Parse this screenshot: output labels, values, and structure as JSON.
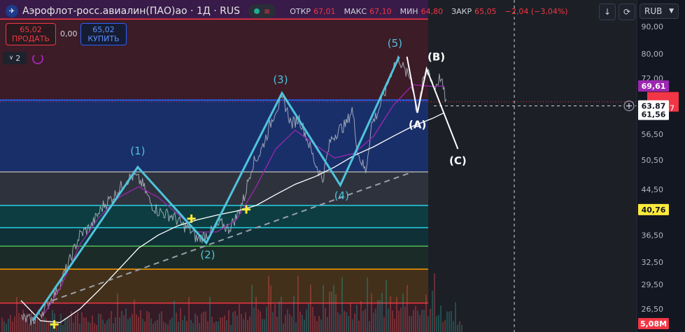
{
  "header": {
    "logo_icon": "aeroflot-logo-icon",
    "title": "Аэрофлот-росс.авиалин(ПАО)ао · 1Д · RUS",
    "status_icon": "market-open-icon",
    "wave_icon": "wave-icon",
    "open_label": "ОТКР",
    "open_value": "67,01",
    "high_label": "МАКС",
    "high_value": "67,10",
    "low_label": "МИН",
    "low_value": "64,80",
    "close_label": "ЗАКР",
    "close_value": "65,05",
    "change": "−2,04 (−3,04%)"
  },
  "toolbar": {
    "currency": "RUB",
    "down_icon": "arrow-down-icon",
    "refresh_icon": "refresh-icon"
  },
  "trade": {
    "sell_price": "65,02",
    "sell_label": "ПРОДАТЬ",
    "spread": "0,00",
    "buy_price": "65,02",
    "buy_label": "КУПИТЬ"
  },
  "indicator_ctrl": {
    "count": "2",
    "chevron_icon": "chevron-down-icon",
    "loading_icon": "loading-icon"
  },
  "colors": {
    "sell": "#f23645",
    "buy": "#2962ff",
    "wave": "#4fc3dc",
    "ma_white": "#ffffff",
    "ma_purple": "#9c27b0"
  },
  "chart_data": {
    "type": "line",
    "scale": "log",
    "ylim": [
      24.0,
      101.0
    ],
    "y_ticks": [
      "90,00",
      "80,00",
      "72,00",
      "56,50",
      "50,50",
      "44,50",
      "36,50",
      "32,50",
      "29,50",
      "26,50"
    ],
    "price_badges": [
      {
        "value": "69,61",
        "color": "#9c27b0",
        "text_color": "#ffffff"
      },
      {
        "value": "63,87",
        "color": "#ffffff",
        "text_color": "#131722"
      },
      {
        "value": "61,56",
        "color": "#ffffff",
        "text_color": "#131722"
      },
      {
        "value": "40,76",
        "color": "#ffeb3b",
        "text_color": "#131722"
      },
      {
        "value": "5,08M",
        "color": "#f23645",
        "text_color": "#ffffff"
      }
    ],
    "partial_badge": "57",
    "crosshair_icon": "crosshair-plus-icon",
    "fib_levels": [
      {
        "price": 93.0,
        "color": "#f23645"
      },
      {
        "price": 65.5,
        "color": "#2962ff"
      },
      {
        "price": 48.0,
        "color": "#9e9e9e"
      },
      {
        "price": 41.5,
        "color": "#26c6da"
      },
      {
        "price": 37.7,
        "color": "#26c6da"
      },
      {
        "price": 34.8,
        "color": "#4caf50"
      },
      {
        "price": 31.5,
        "color": "#ff9800"
      },
      {
        "price": 27.2,
        "color": "#f23645"
      }
    ],
    "zones": [
      {
        "from": 101.0,
        "to": 93.0,
        "color": "#9c27b0",
        "alpha": 0.28
      },
      {
        "from": 93.0,
        "to": 65.5,
        "color": "#f23645",
        "alpha": 0.18
      },
      {
        "from": 65.5,
        "to": 48.0,
        "color": "#2962ff",
        "alpha": 0.32
      },
      {
        "from": 48.0,
        "to": 41.5,
        "color": "#787b86",
        "alpha": 0.28
      },
      {
        "from": 41.5,
        "to": 37.7,
        "color": "#009688",
        "alpha": 0.3
      },
      {
        "from": 37.7,
        "to": 34.8,
        "color": "#009688",
        "alpha": 0.2
      },
      {
        "from": 34.8,
        "to": 31.5,
        "color": "#4caf50",
        "alpha": 0.14
      },
      {
        "from": 31.5,
        "to": 27.2,
        "color": "#ff9800",
        "alpha": 0.2
      },
      {
        "from": 27.2,
        "to": 24.0,
        "color": "#f23645",
        "alpha": 0.15
      }
    ],
    "wave_points": [
      {
        "label": "",
        "t": 0.03,
        "price": 25.2
      },
      {
        "label": "(1)",
        "t": 0.298,
        "price": 49.0
      },
      {
        "label": "(2)",
        "t": 0.473,
        "price": 35.3
      },
      {
        "label": "(3)",
        "t": 0.666,
        "price": 67.5
      },
      {
        "label": "(4)",
        "t": 0.815,
        "price": 45.3
      },
      {
        "label": "(5)",
        "t": 0.965,
        "price": 79.0
      }
    ],
    "correction_points": [
      {
        "label": "",
        "t": 0.985,
        "price": 79.0
      },
      {
        "label": "(A)",
        "t": 1.012,
        "price": 62.0
      },
      {
        "label": "(B)",
        "t": 1.035,
        "price": 75.0
      },
      {
        "label": "(C)",
        "t": 1.115,
        "price": 53.0
      }
    ],
    "trendline": [
      {
        "t": 0.08,
        "price": 27.5
      },
      {
        "t": 1.0,
        "price": 48.0
      }
    ],
    "signals": [
      {
        "t": 0.085,
        "price": 24.8
      },
      {
        "t": 0.435,
        "price": 39.2
      },
      {
        "t": 0.575,
        "price": 40.8
      }
    ],
    "price_path": [
      [
        0.0,
        25.5
      ],
      [
        0.03,
        25.2
      ],
      [
        0.06,
        26.5
      ],
      [
        0.09,
        28.5
      ],
      [
        0.12,
        32.0
      ],
      [
        0.15,
        36.5
      ],
      [
        0.18,
        38.0
      ],
      [
        0.21,
        41.5
      ],
      [
        0.24,
        43.5
      ],
      [
        0.27,
        46.5
      ],
      [
        0.29,
        47.2
      ],
      [
        0.31,
        45.5
      ],
      [
        0.33,
        42.0
      ],
      [
        0.35,
        40.5
      ],
      [
        0.37,
        40.0
      ],
      [
        0.39,
        39.5
      ],
      [
        0.41,
        38.2
      ],
      [
        0.43,
        37.5
      ],
      [
        0.45,
        35.8
      ],
      [
        0.47,
        36.5
      ],
      [
        0.49,
        37.2
      ],
      [
        0.51,
        38.4
      ],
      [
        0.53,
        37.5
      ],
      [
        0.55,
        39.5
      ],
      [
        0.57,
        43.0
      ],
      [
        0.59,
        49.5
      ],
      [
        0.61,
        52.0
      ],
      [
        0.63,
        57.0
      ],
      [
        0.65,
        63.0
      ],
      [
        0.67,
        65.5
      ],
      [
        0.69,
        59.0
      ],
      [
        0.71,
        60.5
      ],
      [
        0.73,
        55.5
      ],
      [
        0.75,
        50.0
      ],
      [
        0.77,
        46.5
      ],
      [
        0.79,
        55.0
      ],
      [
        0.81,
        57.5
      ],
      [
        0.83,
        59.0
      ],
      [
        0.845,
        63.0
      ],
      [
        0.86,
        52.0
      ],
      [
        0.88,
        48.0
      ],
      [
        0.895,
        59.0
      ],
      [
        0.91,
        62.0
      ],
      [
        0.93,
        68.0
      ],
      [
        0.95,
        76.0
      ],
      [
        0.965,
        78.5
      ],
      [
        0.98,
        74.0
      ],
      [
        0.995,
        72.0
      ],
      [
        1.01,
        62.5
      ],
      [
        1.025,
        70.0
      ],
      [
        1.04,
        74.5
      ],
      [
        1.055,
        69.0
      ],
      [
        1.07,
        72.5
      ],
      [
        1.085,
        65.0
      ]
    ],
    "ma_white": [
      [
        0.0,
        27.5
      ],
      [
        0.05,
        25.2
      ],
      [
        0.1,
        25.0
      ],
      [
        0.15,
        26.5
      ],
      [
        0.2,
        28.8
      ],
      [
        0.25,
        31.5
      ],
      [
        0.3,
        34.5
      ],
      [
        0.35,
        36.5
      ],
      [
        0.4,
        38.0
      ],
      [
        0.45,
        39.0
      ],
      [
        0.5,
        39.8
      ],
      [
        0.55,
        40.5
      ],
      [
        0.6,
        41.5
      ],
      [
        0.65,
        43.5
      ],
      [
        0.7,
        45.5
      ],
      [
        0.75,
        47.0
      ],
      [
        0.8,
        49.0
      ],
      [
        0.85,
        51.5
      ],
      [
        0.9,
        53.5
      ],
      [
        0.95,
        56.0
      ],
      [
        1.0,
        58.5
      ],
      [
        1.05,
        60.5
      ],
      [
        1.08,
        62.0
      ]
    ],
    "ma_purple": [
      [
        0.06,
        26.0
      ],
      [
        0.1,
        29.0
      ],
      [
        0.15,
        35.0
      ],
      [
        0.2,
        39.5
      ],
      [
        0.25,
        43.0
      ],
      [
        0.3,
        45.0
      ],
      [
        0.35,
        43.0
      ],
      [
        0.4,
        40.0
      ],
      [
        0.45,
        37.0
      ],
      [
        0.5,
        37.0
      ],
      [
        0.55,
        39.0
      ],
      [
        0.6,
        45.0
      ],
      [
        0.65,
        53.0
      ],
      [
        0.7,
        57.5
      ],
      [
        0.75,
        54.0
      ],
      [
        0.8,
        51.0
      ],
      [
        0.85,
        52.0
      ],
      [
        0.9,
        56.0
      ],
      [
        0.95,
        64.0
      ],
      [
        1.0,
        70.0
      ],
      [
        1.05,
        69.5
      ],
      [
        1.08,
        69.6
      ]
    ]
  }
}
